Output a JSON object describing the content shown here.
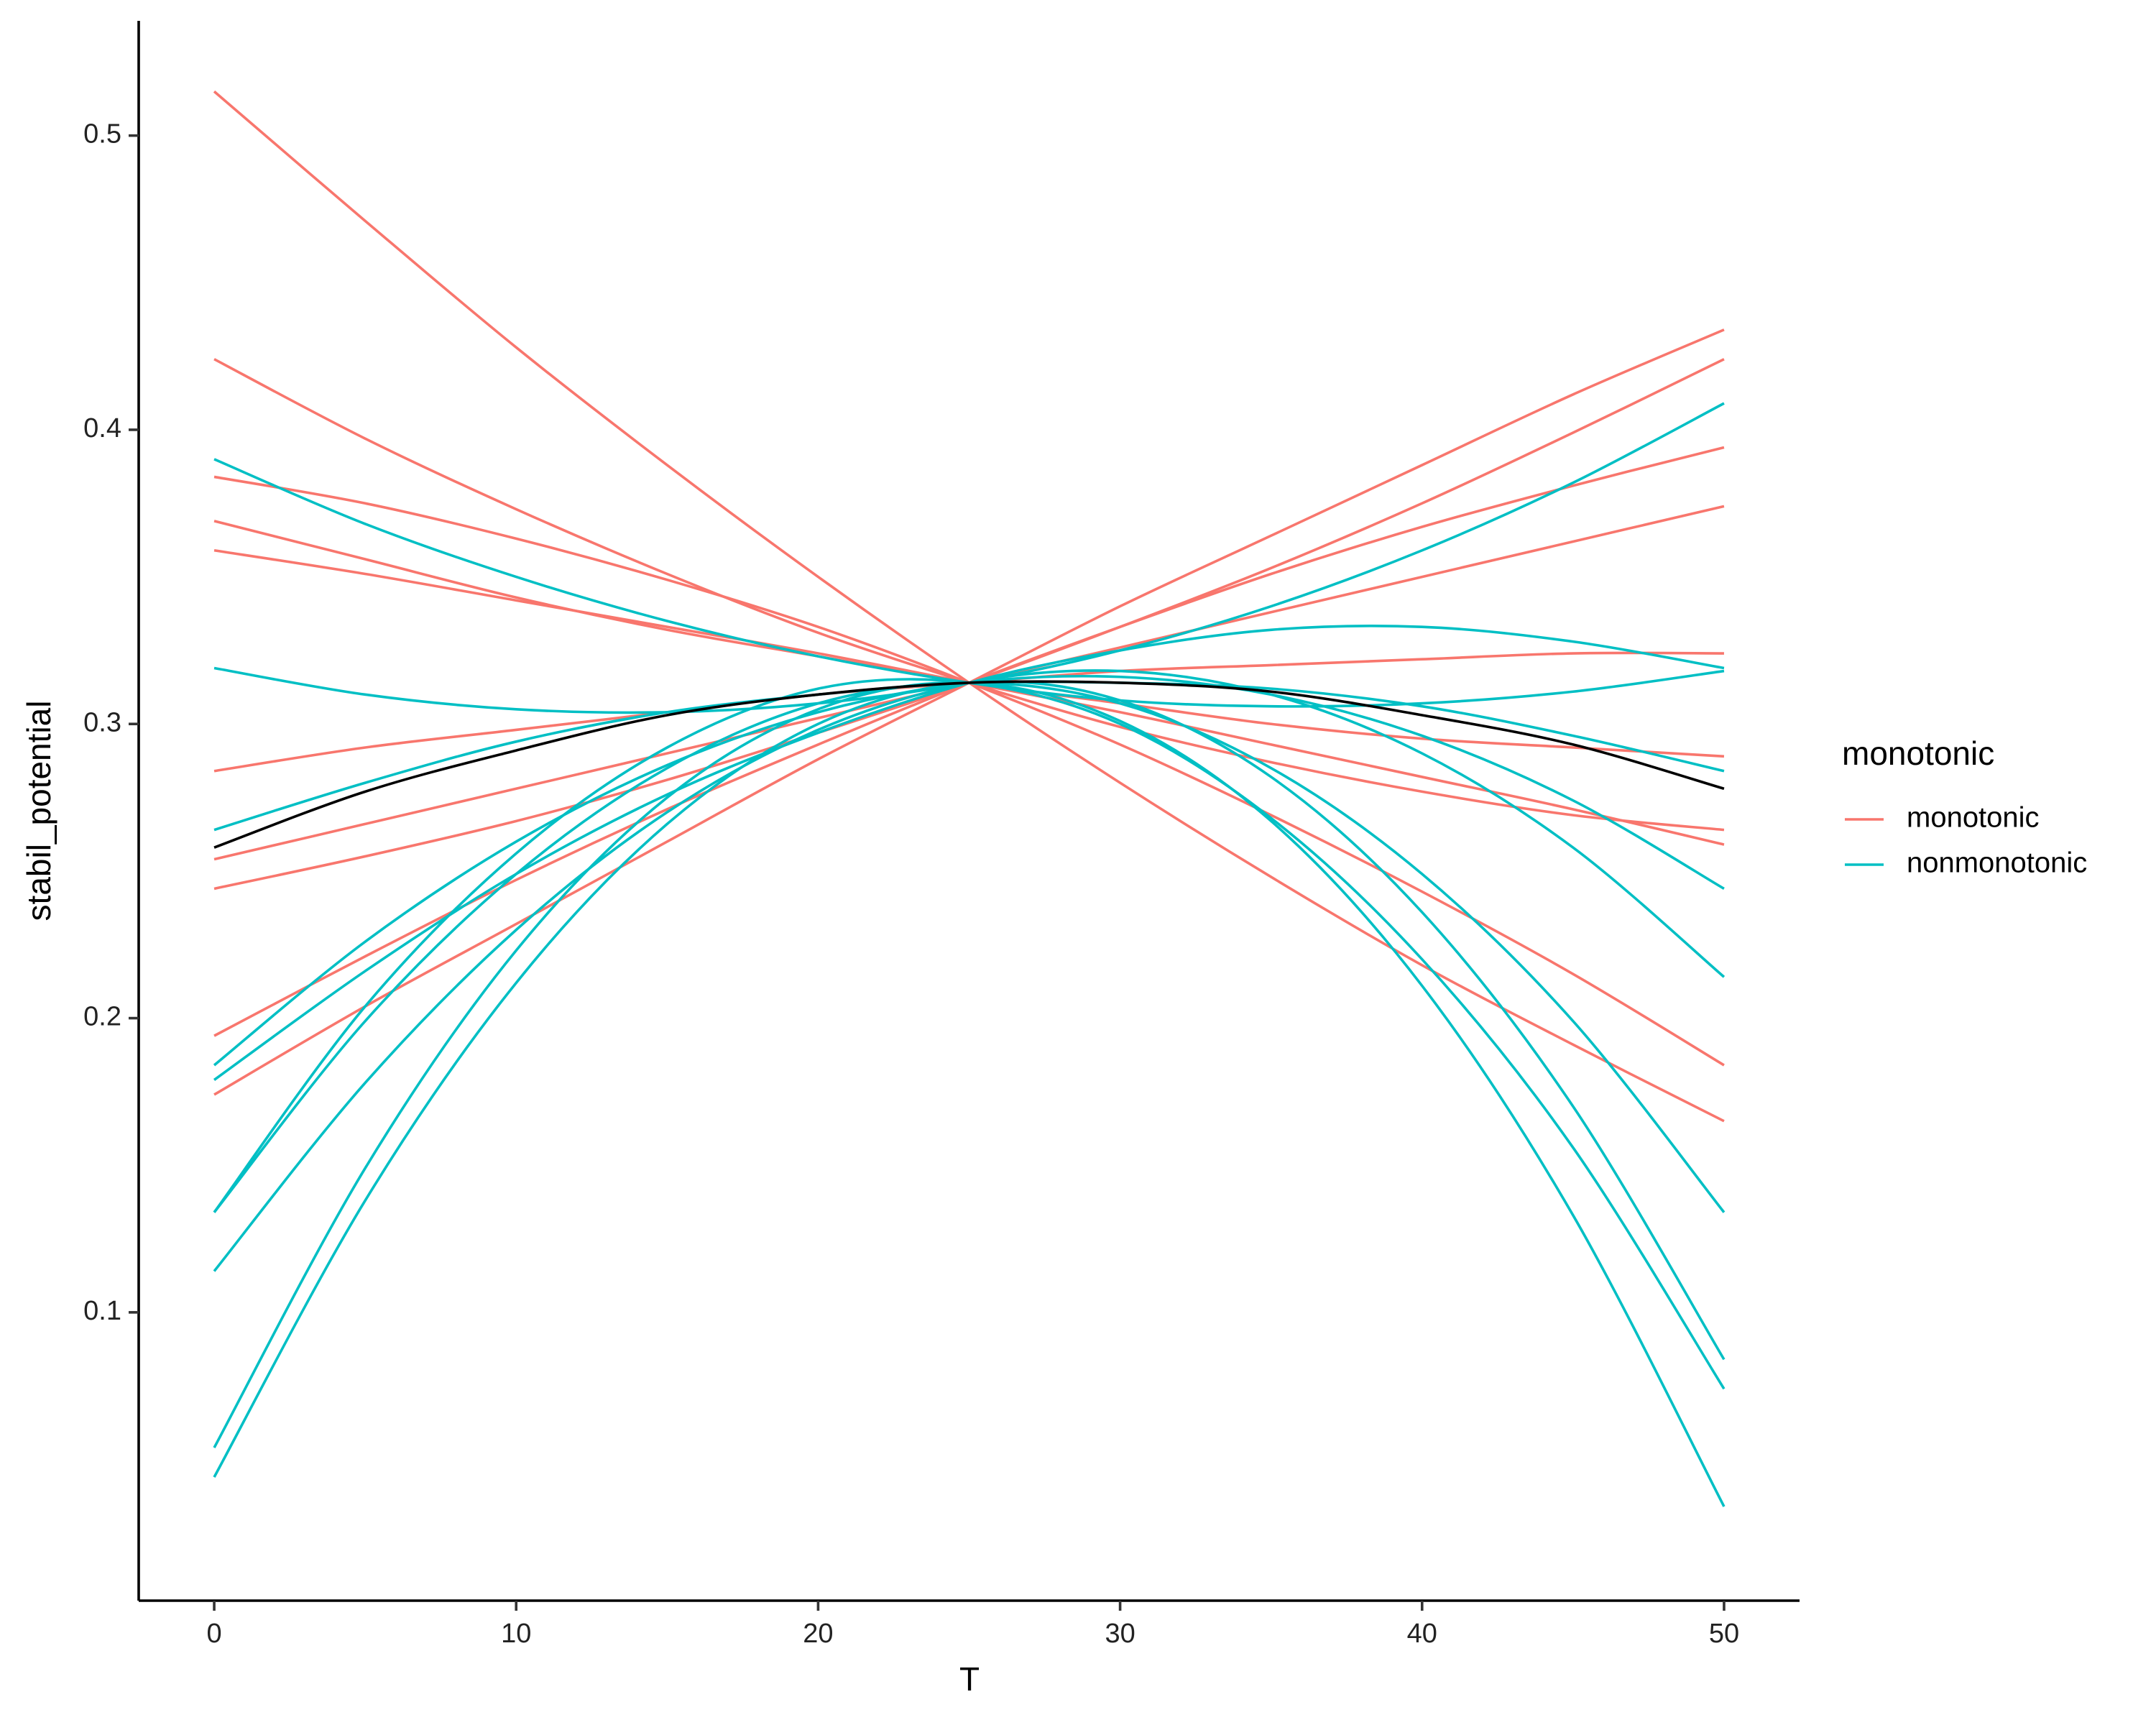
{
  "chart_data": {
    "type": "line",
    "x_label": "T",
    "y_label": "stabil_potential",
    "legend_title": "monotonic",
    "x": [
      0,
      5,
      10,
      15,
      20,
      25,
      30,
      35,
      40,
      45,
      50
    ],
    "xlim": [
      -2.5,
      52.5
    ],
    "xticks": [
      0,
      10,
      20,
      30,
      40,
      50
    ],
    "ylim": [
      0.002,
      0.539
    ],
    "yticks": [
      0.1,
      0.2,
      0.3,
      0.4,
      0.5
    ],
    "grid": false,
    "legend_position": "right",
    "series": [
      {
        "name": "monotonic",
        "color": "#F8766D",
        "lines": [
          [
            0.515,
            0.471,
            0.428,
            0.388,
            0.35,
            0.314,
            0.28,
            0.248,
            0.218,
            0.191,
            0.165
          ],
          [
            0.424,
            0.397,
            0.373,
            0.351,
            0.331,
            0.314,
            0.299,
            0.287,
            0.277,
            0.269,
            0.264
          ],
          [
            0.254,
            0.266,
            0.278,
            0.29,
            0.302,
            0.314,
            0.326,
            0.338,
            0.35,
            0.362,
            0.374
          ],
          [
            0.174,
            0.204,
            0.232,
            0.26,
            0.288,
            0.314,
            0.34,
            0.364,
            0.388,
            0.412,
            0.434
          ],
          [
            0.359,
            0.351,
            0.342,
            0.333,
            0.324,
            0.314,
            0.304,
            0.293,
            0.282,
            0.271,
            0.259
          ],
          [
            0.244,
            0.255,
            0.267,
            0.281,
            0.297,
            0.314,
            0.333,
            0.353,
            0.375,
            0.399,
            0.424
          ],
          [
            0.384,
            0.375,
            0.363,
            0.349,
            0.333,
            0.314,
            0.293,
            0.269,
            0.243,
            0.215,
            0.184
          ],
          [
            0.284,
            0.292,
            0.298,
            0.304,
            0.31,
            0.314,
            0.318,
            0.32,
            0.322,
            0.324,
            0.324
          ],
          [
            0.194,
            0.221,
            0.247,
            0.271,
            0.293,
            0.314,
            0.333,
            0.351,
            0.367,
            0.381,
            0.394
          ],
          [
            0.369,
            0.356,
            0.343,
            0.332,
            0.323,
            0.314,
            0.307,
            0.3,
            0.295,
            0.292,
            0.289
          ]
        ]
      },
      {
        "name": "nonmonotonic",
        "color": "#00BFC4",
        "lines": [
          [
            0.179,
            0.216,
            0.249,
            0.276,
            0.297,
            0.314,
            0.325,
            0.332,
            0.333,
            0.328,
            0.319
          ],
          [
            0.044,
            0.138,
            0.212,
            0.266,
            0.3,
            0.314,
            0.308,
            0.282,
            0.236,
            0.17,
            0.084
          ],
          [
            0.134,
            0.204,
            0.256,
            0.292,
            0.312,
            0.314,
            0.3,
            0.268,
            0.22,
            0.156,
            0.074
          ],
          [
            0.114,
            0.178,
            0.23,
            0.27,
            0.298,
            0.314,
            0.318,
            0.31,
            0.29,
            0.258,
            0.214
          ],
          [
            0.39,
            0.368,
            0.35,
            0.335,
            0.323,
            0.314,
            0.308,
            0.306,
            0.307,
            0.311,
            0.318
          ],
          [
            0.319,
            0.31,
            0.305,
            0.304,
            0.307,
            0.314,
            0.325,
            0.34,
            0.359,
            0.382,
            0.409
          ],
          [
            0.134,
            0.199,
            0.249,
            0.285,
            0.307,
            0.314,
            0.307,
            0.285,
            0.249,
            0.199,
            0.134
          ],
          [
            0.184,
            0.226,
            0.26,
            0.286,
            0.304,
            0.314,
            0.316,
            0.31,
            0.296,
            0.274,
            0.244
          ],
          [
            0.054,
            0.149,
            0.223,
            0.275,
            0.305,
            0.314,
            0.301,
            0.267,
            0.211,
            0.133,
            0.034
          ],
          [
            0.264,
            0.28,
            0.294,
            0.304,
            0.31,
            0.314,
            0.314,
            0.312,
            0.306,
            0.296,
            0.284
          ]
        ]
      }
    ],
    "mean_line": {
      "color": "#000000",
      "values": [
        0.258,
        0.277,
        0.291,
        0.303,
        0.31,
        0.314,
        0.314,
        0.311,
        0.303,
        0.293,
        0.278
      ]
    }
  }
}
